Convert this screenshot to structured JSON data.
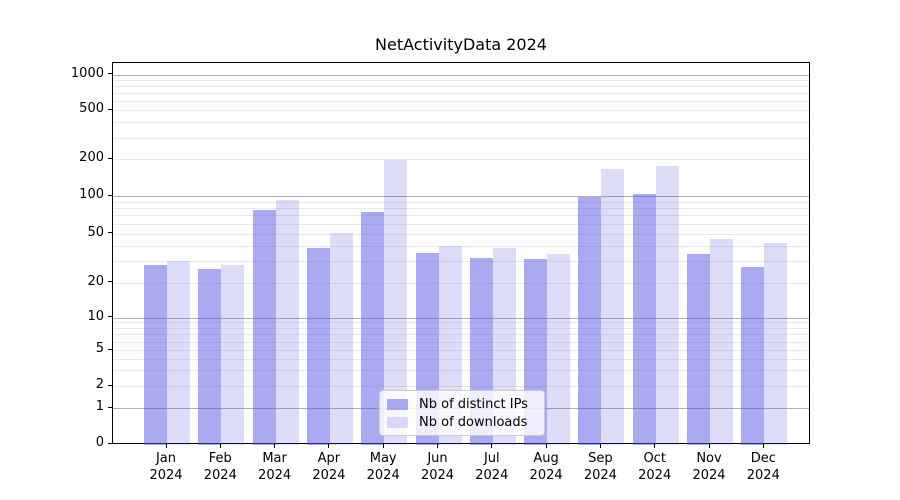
{
  "chart_data": {
    "type": "bar",
    "title": "NetActivityData 2024",
    "x_axis": {
      "months": [
        "Jan",
        "Feb",
        "Mar",
        "Apr",
        "May",
        "Jun",
        "Jul",
        "Aug",
        "Sep",
        "Oct",
        "Nov",
        "Dec"
      ],
      "year": "2024"
    },
    "y_axis": {
      "scale": "symlog",
      "tick_labels": [
        "1000",
        "500",
        "200",
        "100",
        "50",
        "20",
        "10",
        "5",
        "2",
        "1",
        "0"
      ],
      "ylim": [
        0,
        1000
      ],
      "grid": true
    },
    "series": [
      {
        "name": "Nb of distinct IPs",
        "color": "rgba(85,85,230,0.5)",
        "values": [
          28,
          26,
          78,
          38,
          74,
          35,
          32,
          31,
          98,
          103,
          34,
          27
        ]
      },
      {
        "name": "Nb of downloads",
        "color": "rgba(85,85,230,0.2)",
        "values": [
          30,
          28,
          93,
          51,
          196,
          40,
          38,
          34,
          168,
          176,
          45,
          42
        ]
      }
    ],
    "legend": {
      "position": "lower center",
      "entries": [
        "Nb of distinct IPs",
        "Nb of downloads"
      ]
    }
  },
  "colors": {
    "major_grid": "#b0b0b0",
    "minor_grid": "#e9e9e9",
    "axis": "#000000"
  }
}
